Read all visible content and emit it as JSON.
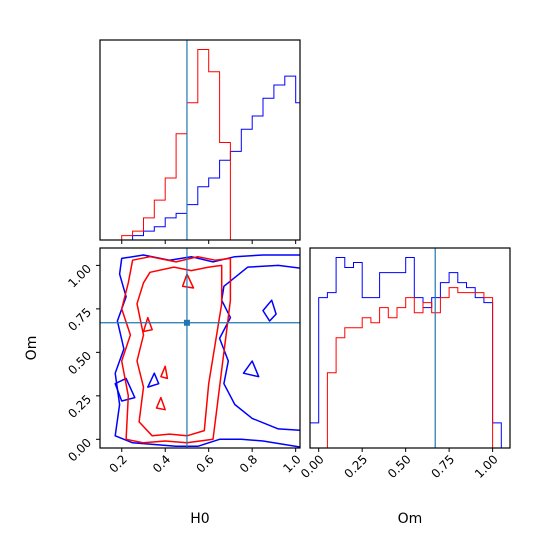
{
  "chart_data": [
    {
      "panel": "H0 marginal",
      "type": "bar",
      "x_bin_edges": [
        0.0,
        0.05,
        0.1,
        0.15,
        0.2,
        0.25,
        0.3,
        0.35,
        0.4,
        0.45,
        0.5,
        0.55,
        0.6,
        0.65,
        0.7,
        0.75,
        0.8,
        0.85,
        0.9,
        0.95,
        1.0,
        1.05
      ],
      "xlim": [
        0.1,
        1.02
      ],
      "series": [
        {
          "color": "#0000ff",
          "values": [
            0,
            0,
            0,
            0,
            0,
            1,
            2,
            3,
            5,
            6,
            8,
            12,
            14,
            18,
            20,
            25,
            28,
            32,
            35,
            37,
            31,
            18
          ]
        },
        {
          "color": "#ff0000",
          "values": [
            0,
            0,
            0,
            0,
            1,
            2,
            5,
            9,
            14,
            24,
            31,
            43,
            38,
            22,
            0,
            0,
            0,
            0,
            0,
            0,
            0,
            0
          ]
        }
      ],
      "truth_x": 0.5
    },
    {
      "panel": "H0 vs Om joint",
      "type": "contour",
      "xlabel": "H0",
      "ylabel": "Om",
      "xlim": [
        0.1,
        1.02
      ],
      "ylim": [
        -0.05,
        1.1
      ],
      "xticks": [
        "0.2",
        "0.4",
        "0.6",
        "0.8",
        "1.0"
      ],
      "yticks": [
        "0.00",
        "0.25",
        "0.50",
        "0.75",
        "1.00"
      ],
      "series": [
        {
          "color": "#0000ff",
          "description_levels": 2
        },
        {
          "color": "#ff0000",
          "description_levels": 2
        }
      ],
      "truth": {
        "x": 0.5,
        "y": 0.67
      }
    },
    {
      "panel": "Om marginal",
      "type": "bar",
      "xlabel": "Om",
      "x_bin_edges": [
        -0.05,
        0.0,
        0.05,
        0.1,
        0.15,
        0.2,
        0.25,
        0.3,
        0.35,
        0.4,
        0.45,
        0.5,
        0.55,
        0.6,
        0.65,
        0.7,
        0.75,
        0.8,
        0.85,
        0.9,
        0.95,
        1.0,
        1.05,
        1.1
      ],
      "xlim": [
        -0.05,
        1.1
      ],
      "xticks": [
        "0.00",
        "0.25",
        "0.50",
        "0.75",
        "1.00"
      ],
      "series": [
        {
          "color": "#0000ff",
          "values": [
            5,
            30,
            31,
            38,
            36,
            37,
            30,
            30,
            35,
            35,
            35,
            38,
            30,
            28,
            30,
            33,
            35,
            33,
            32,
            30,
            29,
            5,
            0
          ]
        },
        {
          "color": "#ff0000",
          "values": [
            0,
            0,
            15,
            22,
            24,
            24,
            26,
            25,
            28,
            26,
            28,
            30,
            27,
            29,
            27,
            30,
            32,
            31,
            31,
            31,
            30,
            0,
            0
          ]
        }
      ],
      "truth_x": 0.67
    }
  ]
}
